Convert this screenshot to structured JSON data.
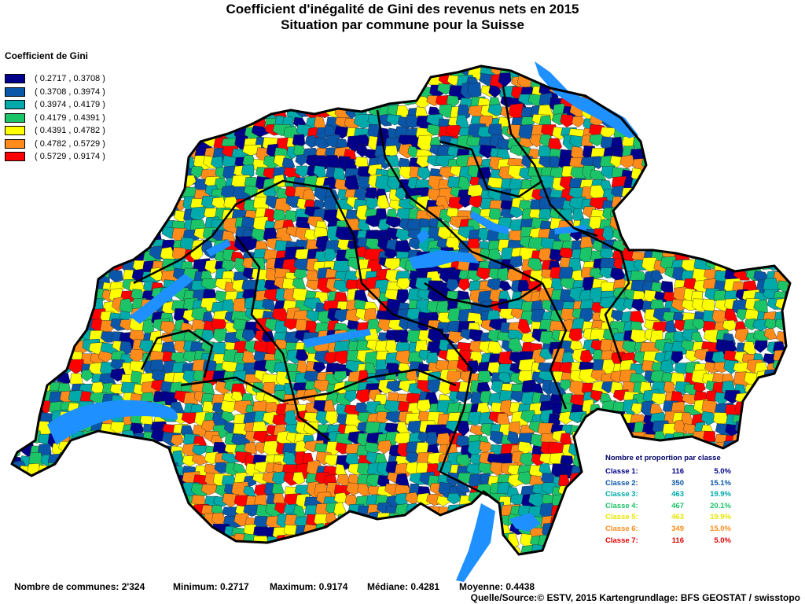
{
  "title_line1": "Coefficient d'inégalité de Gini des revenus nets en 2015",
  "title_line2": "Situation par commune pour la Suisse",
  "legend": {
    "title": "Coefficient de Gini",
    "classes": [
      {
        "label": "( 0.2717 , 0.3708 )",
        "color": "#00008B"
      },
      {
        "label": "( 0.3708 , 0.3974 )",
        "color": "#0A56A8"
      },
      {
        "label": "( 0.3974 , 0.4179 )",
        "color": "#00AAAA"
      },
      {
        "label": "( 0.4179 , 0.4391 )",
        "color": "#1CC468"
      },
      {
        "label": "( 0.4391 , 0.4782 )",
        "color": "#FFFF00"
      },
      {
        "label": "( 0.4782 , 0.5729 )",
        "color": "#FF8C1A"
      },
      {
        "label": "( 0.5729 , 0.9174 )",
        "color": "#FF0000"
      }
    ]
  },
  "stats": {
    "title": "Nombre et proportion par classe",
    "rows": [
      {
        "name": "Classe  1:",
        "count": "116",
        "pct": "5.0%",
        "color": "#00008B"
      },
      {
        "name": "Classe  2:",
        "count": "350",
        "pct": "15.1%",
        "color": "#0A56A8"
      },
      {
        "name": "Classe  3:",
        "count": "463",
        "pct": "19.9%",
        "color": "#00AAAA"
      },
      {
        "name": "Classe  4:",
        "count": "467",
        "pct": "20.1%",
        "color": "#1CC468"
      },
      {
        "name": "Classe  5:",
        "count": "463",
        "pct": "19.9%",
        "color": "#E6E600"
      },
      {
        "name": "Classe  6:",
        "count": "349",
        "pct": "15.0%",
        "color": "#FF8C1A"
      },
      {
        "name": "Classe  7:",
        "count": "116",
        "pct": "5.0%",
        "color": "#E00000"
      }
    ]
  },
  "footer": {
    "communes": "Nombre de communes: 2'324",
    "minimum": "Minimum: 0.2717",
    "maximum": "Maximum: 0.9174",
    "mediane": "Médiane: 0.4281",
    "moyenne": "Moyenne: 0.4438",
    "source": "Quelle/Source:© ESTV, 2015 Kartengrundlage: BFS GEOSTAT / swisstopo"
  },
  "map": {
    "water_color": "#1E90FF",
    "border_color": "#000000"
  }
}
